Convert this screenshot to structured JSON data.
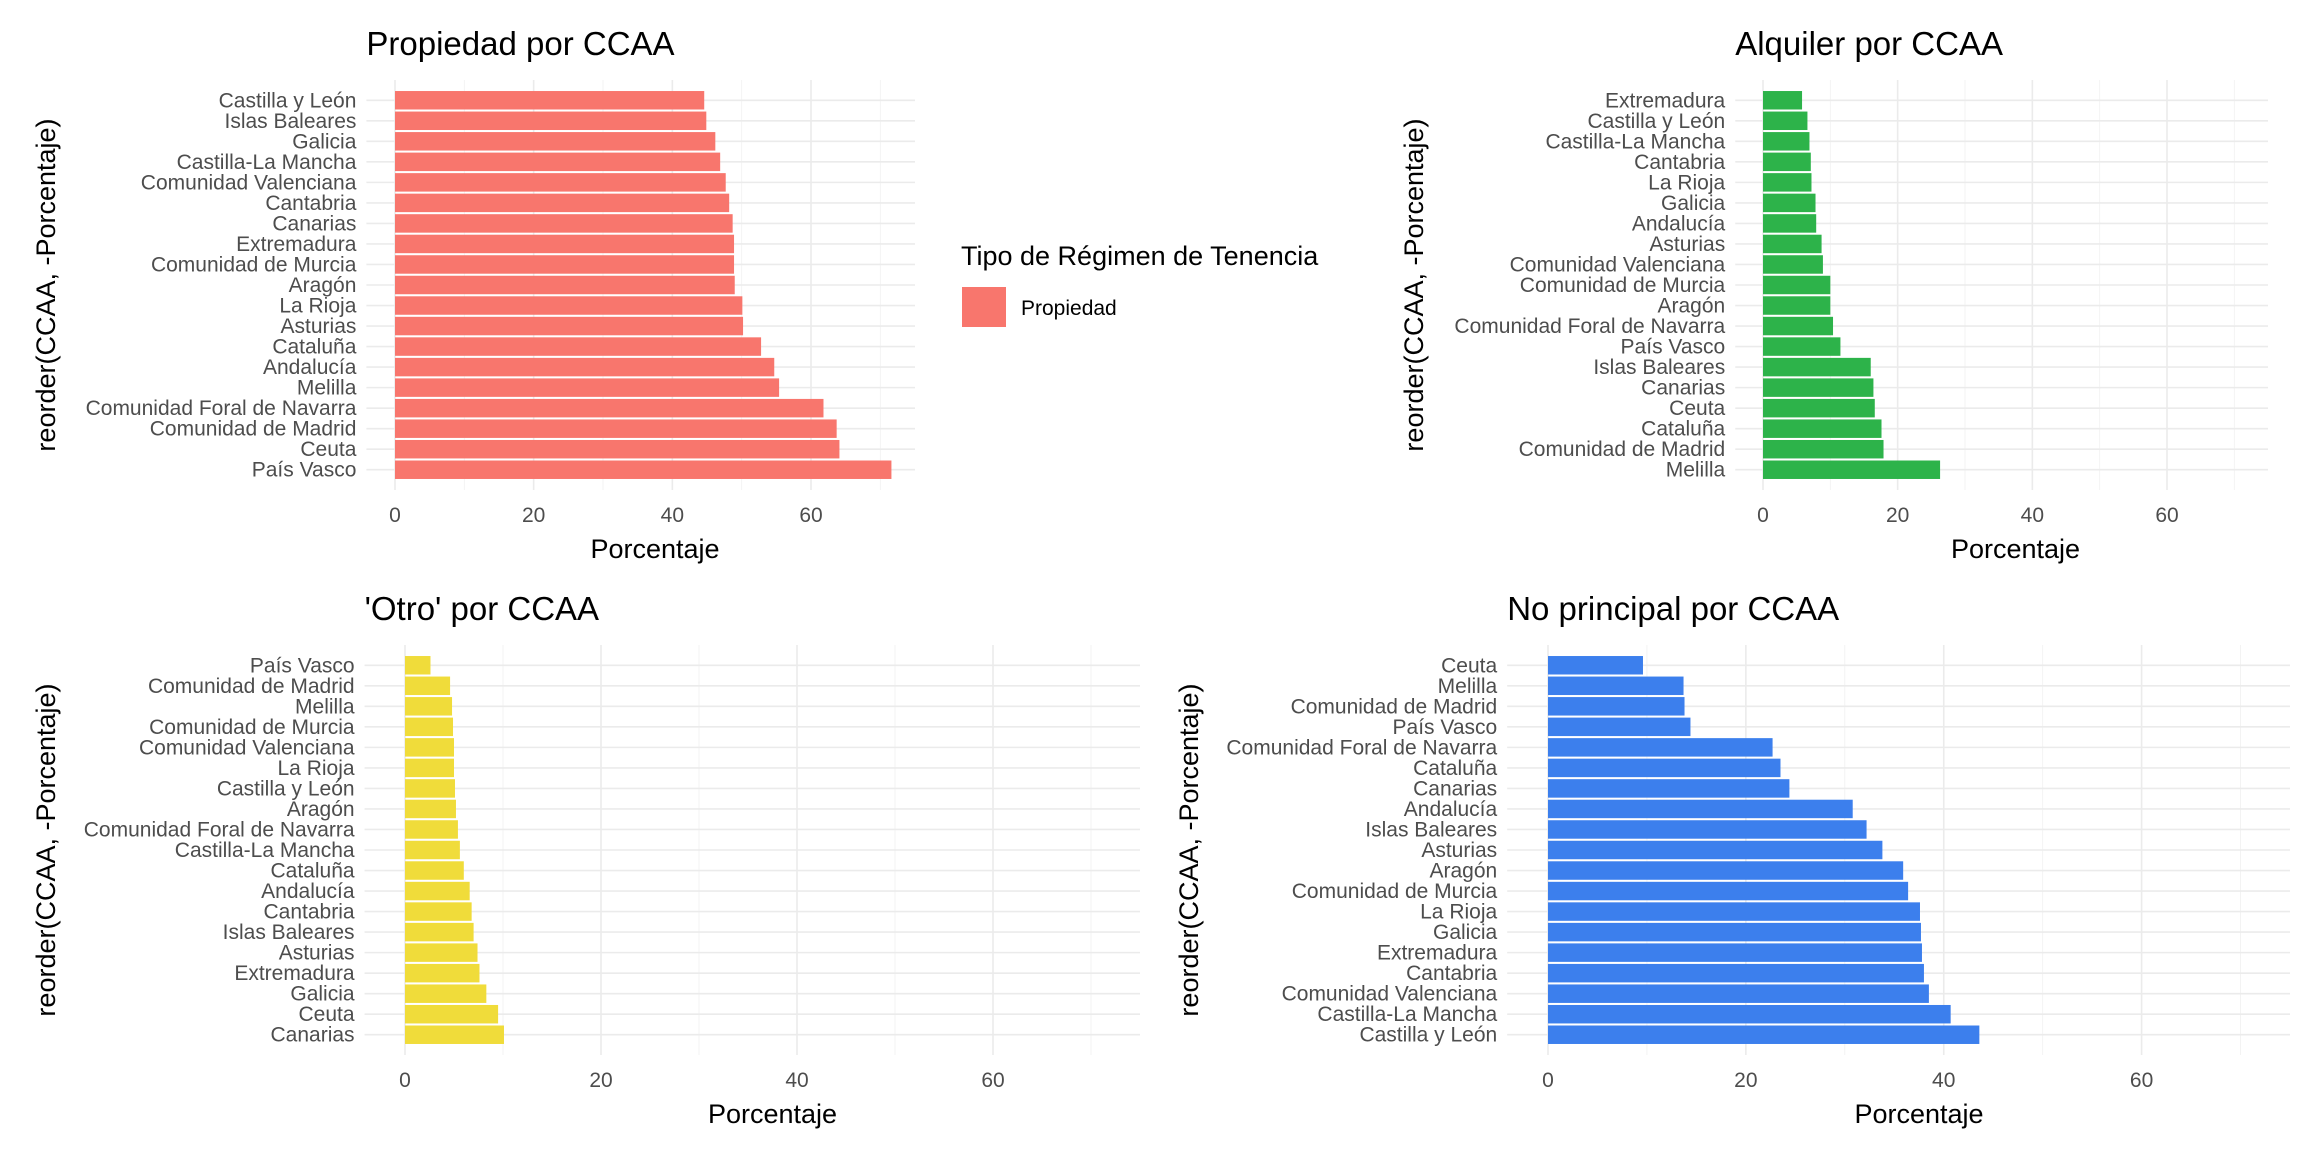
{
  "legend": {
    "title": "Tipo de Régimen de Tenencia",
    "entries": [
      {
        "label": "Propiedad",
        "color": "#F8766D"
      }
    ]
  },
  "chart_data": [
    {
      "type": "bar",
      "orientation": "horizontal",
      "title": "Propiedad por CCAA",
      "xlabel": "Porcentaje",
      "ylabel": "reorder(CCAA, -Porcentaje)",
      "xlim": [
        0,
        75
      ],
      "xticks": [
        0,
        20,
        40,
        60
      ],
      "grid": true,
      "color": "#F8766D",
      "categories": [
        "Castilla y León",
        "Islas Baleares",
        "Galicia",
        "Castilla-La Mancha",
        "Comunidad Valenciana",
        "Cantabria",
        "Canarias",
        "Extremadura",
        "Comunidad de Murcia",
        "Aragón",
        "La Rioja",
        "Asturias",
        "Cataluña",
        "Andalucía",
        "Melilla",
        "Comunidad Foral de Navarra",
        "Comunidad de Madrid",
        "Ceuta",
        "País Vasco"
      ],
      "values": [
        44.6,
        44.9,
        46.2,
        46.9,
        47.7,
        48.2,
        48.7,
        48.9,
        48.9,
        49.0,
        50.1,
        50.2,
        52.8,
        54.7,
        55.4,
        61.8,
        63.7,
        64.1,
        71.6
      ]
    },
    {
      "type": "bar",
      "orientation": "horizontal",
      "title": "Alquiler por CCAA",
      "xlabel": "Porcentaje",
      "ylabel": "reorder(CCAA, -Porcentaje)",
      "xlim": [
        0,
        75
      ],
      "xticks": [
        0,
        20,
        40,
        60
      ],
      "grid": true,
      "color": "#2DB34A",
      "categories": [
        "Extremadura",
        "Castilla y León",
        "Castilla-La Mancha",
        "Cantabria",
        "La Rioja",
        "Galicia",
        "Andalucía",
        "Asturias",
        "Comunidad Valenciana",
        "Comunidad de Murcia",
        "Aragón",
        "Comunidad Foral de Navarra",
        "País Vasco",
        "Islas Baleares",
        "Canarias",
        "Ceuta",
        "Cataluña",
        "Comunidad de Madrid",
        "Melilla"
      ],
      "values": [
        5.8,
        6.6,
        6.9,
        7.1,
        7.2,
        7.8,
        7.9,
        8.7,
        8.9,
        10.0,
        10.0,
        10.4,
        11.5,
        16.0,
        16.4,
        16.6,
        17.6,
        17.9,
        26.3
      ]
    },
    {
      "type": "bar",
      "orientation": "horizontal",
      "title": "'Otro' por CCAA",
      "xlabel": "Porcentaje",
      "ylabel": "reorder(CCAA, -Porcentaje)",
      "xlim": [
        0,
        75
      ],
      "xticks": [
        0,
        20,
        40,
        60
      ],
      "grid": true,
      "color": "#F0DC3A",
      "categories": [
        "País Vasco",
        "Comunidad de Madrid",
        "Melilla",
        "Comunidad de Murcia",
        "Comunidad Valenciana",
        "La Rioja",
        "Castilla y León",
        "Aragón",
        "Comunidad Foral de Navarra",
        "Castilla-La Mancha",
        "Cataluña",
        "Andalucía",
        "Cantabria",
        "Islas Baleares",
        "Asturias",
        "Extremadura",
        "Galicia",
        "Ceuta",
        "Canarias"
      ],
      "values": [
        2.6,
        4.6,
        4.8,
        4.9,
        5.0,
        5.0,
        5.1,
        5.2,
        5.4,
        5.6,
        6.0,
        6.6,
        6.8,
        7.0,
        7.4,
        7.6,
        8.3,
        9.5,
        10.1
      ]
    },
    {
      "type": "bar",
      "orientation": "horizontal",
      "title": "No principal por CCAA",
      "xlabel": "Porcentaje",
      "ylabel": "reorder(CCAA, -Porcentaje)",
      "xlim": [
        0,
        75
      ],
      "xticks": [
        0,
        20,
        40,
        60
      ],
      "grid": true,
      "color": "#3C7FED",
      "categories": [
        "Ceuta",
        "Melilla",
        "Comunidad de Madrid",
        "País Vasco",
        "Comunidad Foral de Navarra",
        "Cataluña",
        "Canarias",
        "Andalucía",
        "Islas Baleares",
        "Asturias",
        "Aragón",
        "Comunidad de Murcia",
        "La Rioja",
        "Galicia",
        "Extremadura",
        "Cantabria",
        "Comunidad Valenciana",
        "Castilla-La Mancha",
        "Castilla y León"
      ],
      "values": [
        9.6,
        13.7,
        13.8,
        14.4,
        22.7,
        23.5,
        24.4,
        30.8,
        32.2,
        33.8,
        35.9,
        36.4,
        37.6,
        37.7,
        37.8,
        38.0,
        38.5,
        40.7,
        43.6
      ]
    }
  ]
}
